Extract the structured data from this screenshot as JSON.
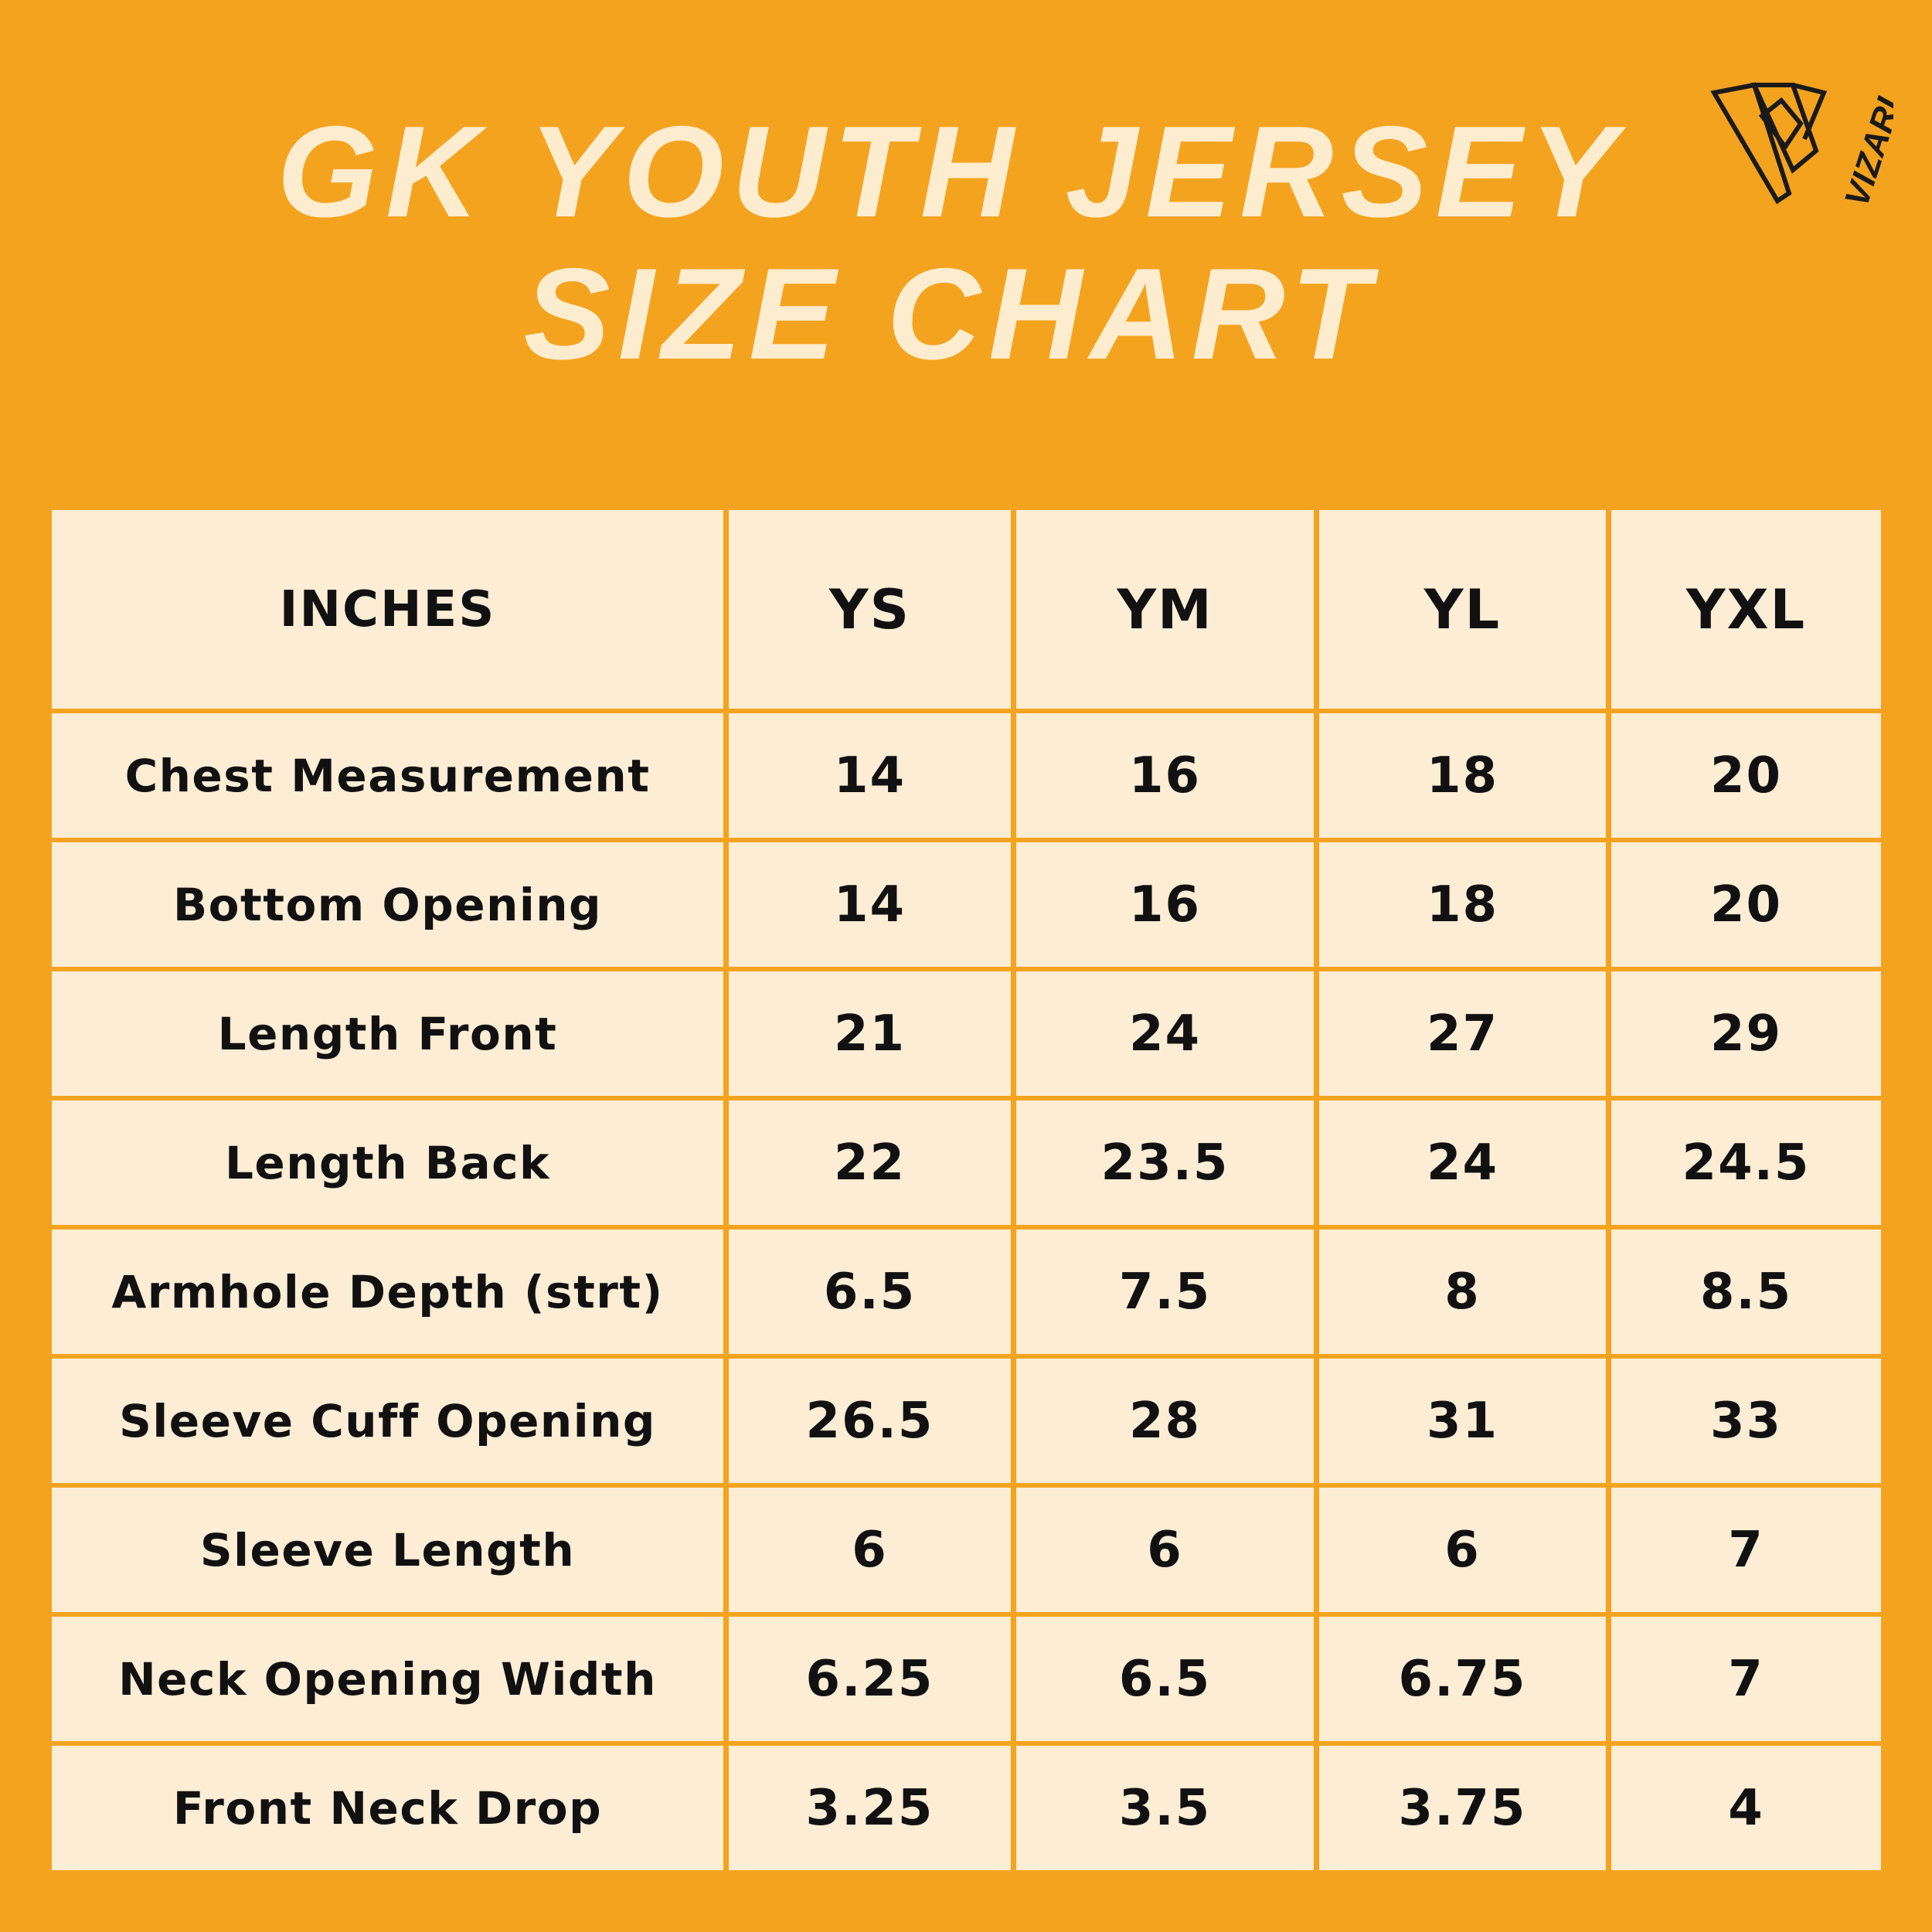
{
  "header": {
    "title_lines": [
      "GK YOUTH JERSEY",
      "SIZE CHART"
    ],
    "brand": "VIZARI"
  },
  "table": {
    "columns": [
      "INCHES",
      "YS",
      "YM",
      "YL",
      "YXL"
    ],
    "rows": [
      [
        "Chest Measurement",
        "14",
        "16",
        "18",
        "20"
      ],
      [
        "Bottom Opening",
        "14",
        "16",
        "18",
        "20"
      ],
      [
        "Length Front",
        "21",
        "24",
        "27",
        "29"
      ],
      [
        "Length Back",
        "22",
        "23.5",
        "24",
        "24.5"
      ],
      [
        "Armhole Depth (strt)",
        "6.5",
        "7.5",
        "8",
        "8.5"
      ],
      [
        "Sleeve Cuff Opening",
        "26.5",
        "28",
        "31",
        "33"
      ],
      [
        "Sleeve Length",
        "6",
        "6",
        "6",
        "7"
      ],
      [
        "Neck Opening Width",
        "6.25",
        "6.5",
        "6.75",
        "7"
      ],
      [
        "Front Neck Drop",
        "3.25",
        "3.5",
        "3.75",
        "4"
      ]
    ]
  }
}
